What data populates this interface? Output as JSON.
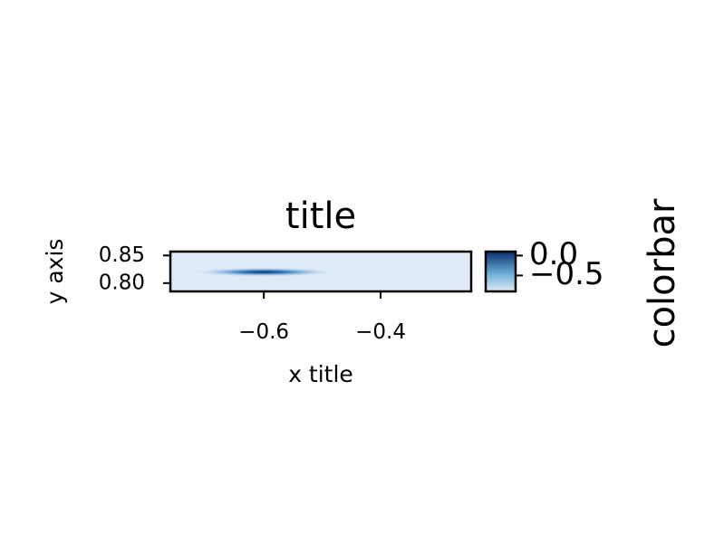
{
  "chart_data": {
    "type": "heatmap",
    "title": "title",
    "xlabel": "x title",
    "ylabel": "y axis",
    "xlim": [
      -0.76,
      -0.245
    ],
    "ylim": [
      0.785,
      0.857
    ],
    "x_ticks": [
      -0.6,
      -0.4
    ],
    "x_tick_labels": [
      "−0.6",
      "−0.4"
    ],
    "y_ticks": [
      0.8,
      0.85
    ],
    "y_tick_labels": [
      "0.80",
      "0.85"
    ],
    "colormap": "Blues_r",
    "colors": {
      "low": "#08306b",
      "mid": "#2171b5",
      "high": "#deebf7"
    },
    "feature": {
      "x_center": -0.6,
      "y_center": 0.82,
      "x_halfwidth": 0.12,
      "min_value": -0.9
    },
    "background_value": 0.0,
    "colorbar": {
      "label": "colorbar",
      "range": [
        -0.9,
        0.1
      ],
      "ticks": [
        0.0,
        -0.5
      ],
      "tick_labels": [
        "0.0",
        "−0.5"
      ]
    },
    "grid": false,
    "legend": "none"
  }
}
